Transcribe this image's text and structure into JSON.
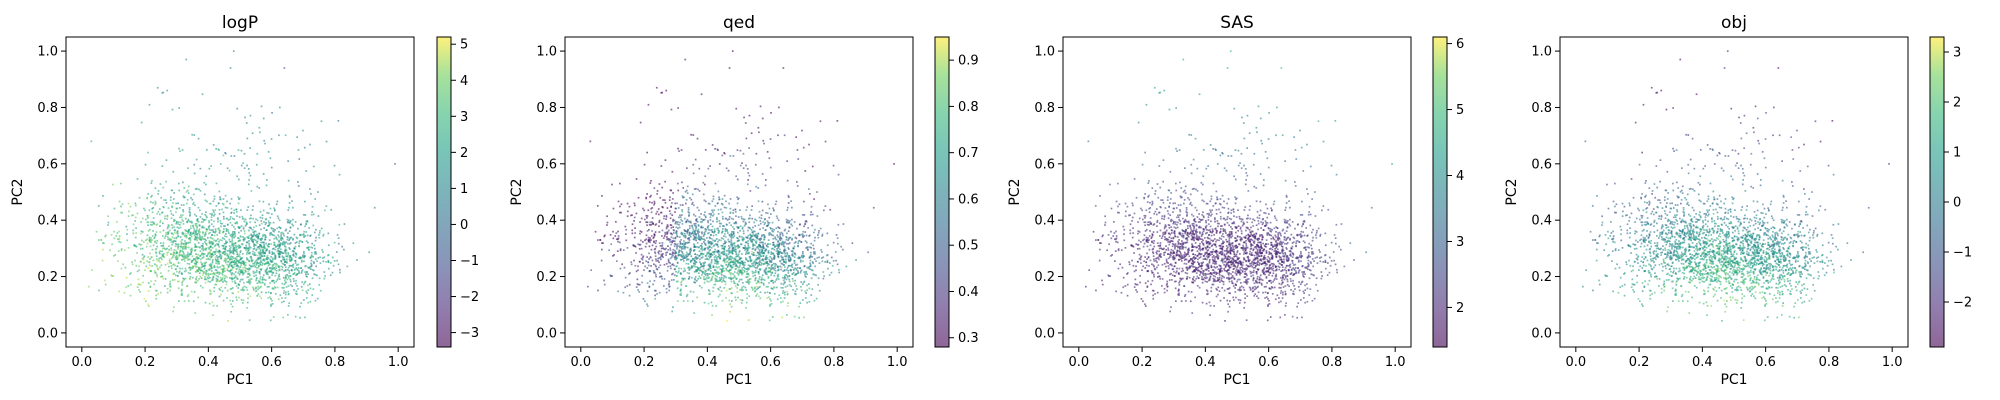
{
  "chart_data": [
    {
      "type": "scatter",
      "title": "logP",
      "xlabel": "PC1",
      "ylabel": "PC2",
      "xlim": [
        -0.05,
        1.05
      ],
      "ylim": [
        -0.05,
        1.05
      ],
      "xticks": [
        "0.0",
        "0.2",
        "0.4",
        "0.6",
        "0.8",
        "1.0"
      ],
      "yticks": [
        "0.0",
        "0.2",
        "0.4",
        "0.6",
        "0.8",
        "1.0"
      ],
      "colormap": "viridis",
      "alpha": 0.5,
      "colorbar": {
        "range": [
          -3.4,
          5.2
        ],
        "ticks": [
          "5",
          "4",
          "3",
          "2",
          "1",
          "0",
          "−1",
          "−2",
          "−3"
        ]
      },
      "color_trend": "mostly 1-3 (green/teal); higher logP toward lower-left, lower toward right",
      "point_cloud": {
        "center": [
          0.45,
          0.3
        ],
        "spread": "dense core PC1 0.15-0.75, PC2 0.05-0.6; sparse outliers up to PC2 1.0"
      }
    },
    {
      "type": "scatter",
      "title": "qed",
      "xlabel": "PC1",
      "ylabel": "PC2",
      "xlim": [
        -0.05,
        1.05
      ],
      "ylim": [
        -0.05,
        1.05
      ],
      "xticks": [
        "0.0",
        "0.2",
        "0.4",
        "0.6",
        "0.8",
        "1.0"
      ],
      "yticks": [
        "0.0",
        "0.2",
        "0.4",
        "0.6",
        "0.8",
        "1.0"
      ],
      "colormap": "viridis",
      "alpha": 0.5,
      "colorbar": {
        "range": [
          0.28,
          0.95
        ],
        "ticks": [
          "0.9",
          "0.8",
          "0.7",
          "0.6",
          "0.5",
          "0.4",
          "0.3"
        ]
      },
      "color_trend": "high qed (yellow) at bottom-center, lower (teal/purple) toward upper-left",
      "point_cloud": {
        "center": [
          0.45,
          0.3
        ],
        "spread": "same embedding as other panels"
      }
    },
    {
      "type": "scatter",
      "title": "SAS",
      "xlabel": "PC1",
      "ylabel": "PC2",
      "xlim": [
        -0.05,
        1.05
      ],
      "ylim": [
        -0.05,
        1.05
      ],
      "xticks": [
        "0.0",
        "0.2",
        "0.4",
        "0.6",
        "0.8",
        "1.0"
      ],
      "yticks": [
        "0.0",
        "0.2",
        "0.4",
        "0.6",
        "0.8",
        "1.0"
      ],
      "colormap": "viridis",
      "alpha": 0.5,
      "colorbar": {
        "range": [
          1.4,
          6.1
        ],
        "ticks": [
          "6",
          "5",
          "4",
          "3",
          "2"
        ]
      },
      "color_trend": "mostly low SAS (dark purple); higher values (teal/green) toward upper-right outliers",
      "point_cloud": {
        "center": [
          0.45,
          0.3
        ],
        "spread": "same embedding as other panels"
      }
    },
    {
      "type": "scatter",
      "title": "obj",
      "xlabel": "PC1",
      "ylabel": "PC2",
      "xlim": [
        -0.05,
        1.05
      ],
      "ylim": [
        -0.05,
        1.05
      ],
      "xticks": [
        "0.0",
        "0.2",
        "0.4",
        "0.6",
        "0.8",
        "1.0"
      ],
      "yticks": [
        "0.0",
        "0.2",
        "0.4",
        "0.6",
        "0.8",
        "1.0"
      ],
      "colormap": "viridis",
      "alpha": 0.5,
      "colorbar": {
        "range": [
          -2.9,
          3.3
        ],
        "ticks": [
          "3",
          "2",
          "1",
          "0",
          "−1",
          "−2"
        ]
      },
      "color_trend": "high obj (yellow) at bottom-center, green core, teal toward edges",
      "point_cloud": {
        "center": [
          0.45,
          0.3
        ],
        "spread": "same embedding as other panels"
      }
    }
  ]
}
